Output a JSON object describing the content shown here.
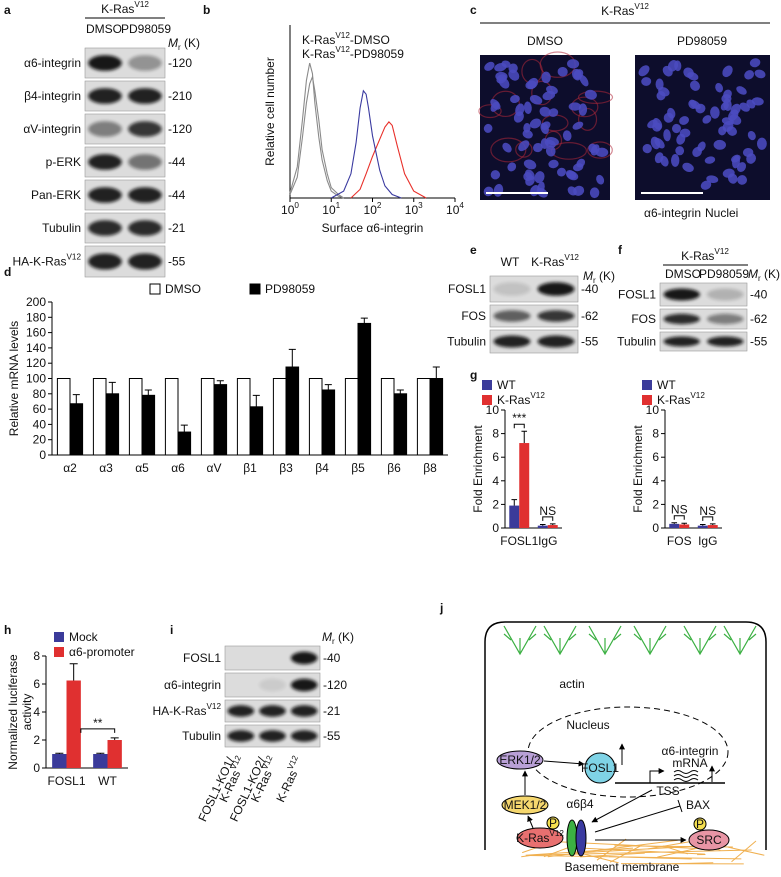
{
  "figure": {
    "a": {
      "letter": "a",
      "group": [
        "K-Ras",
        "V12"
      ],
      "lanes": [
        "DMSO",
        "PD98059"
      ],
      "mr_header": [
        "M",
        "r",
        " (K)"
      ],
      "rows": [
        {
          "label": "α6-integrin",
          "mr": "-120"
        },
        {
          "label": "β4-integrin",
          "mr": "-210"
        },
        {
          "label": "αV-integrin",
          "mr": "-120"
        },
        {
          "label": "p-ERK",
          "mr": "-44"
        },
        {
          "label": "Pan-ERK",
          "mr": "-44"
        },
        {
          "label": "Tubulin",
          "mr": "-21"
        },
        {
          "label": [
            "HA-K-Ras",
            "V12"
          ],
          "mr": "-55"
        }
      ]
    },
    "b": {
      "letter": "b"
    },
    "c": {
      "letter": "c",
      "group": [
        "K-Ras",
        "V12"
      ],
      "lanes": [
        "DMSO",
        "PD98059"
      ],
      "legend": [
        "α6-integrin",
        "Nuclei"
      ]
    },
    "d": {
      "letter": "d"
    },
    "e": {
      "letter": "e",
      "lanes": [
        "WT",
        [
          "K-Ras",
          "V12"
        ]
      ],
      "mr_header": [
        "M",
        "r",
        " (K)"
      ],
      "rows": [
        {
          "label": "FOSL1",
          "mr": "-40"
        },
        {
          "label": "FOS",
          "mr": "-62"
        },
        {
          "label": "Tubulin",
          "mr": "-55"
        }
      ]
    },
    "f": {
      "letter": "f",
      "group": [
        "K-Ras",
        "V12"
      ],
      "lanes": [
        "DMSO",
        "PD98059"
      ],
      "mr_header": [
        "M",
        "r",
        " (K)"
      ],
      "rows": [
        {
          "label": "FOSL1",
          "mr": "-40"
        },
        {
          "label": "FOS",
          "mr": "-62"
        },
        {
          "label": "Tubulin",
          "mr": "-55"
        }
      ]
    },
    "g": {
      "letter": "g"
    },
    "h": {
      "letter": "h"
    },
    "i": {
      "letter": "i",
      "mr_header": [
        "M",
        "r",
        " (K)"
      ],
      "rows": [
        {
          "label": "FOSL1",
          "mr": "-40"
        },
        {
          "label": "α6-integrin",
          "mr": "-120"
        },
        {
          "label": [
            "HA-K-Ras",
            "V12"
          ],
          "mr": "-21"
        },
        {
          "label": "Tubulin",
          "mr": "-55"
        }
      ],
      "lanes": [
        [
          "FOSL1-KO1/",
          [
            "K-Ras",
            "V12"
          ]
        ],
        [
          "FOSL1-KO2/",
          [
            "K-Ras",
            "V12"
          ]
        ],
        [
          [
            "K-Ras",
            "V12"
          ]
        ]
      ]
    },
    "j": {
      "letter": "j",
      "actin": "actin",
      "nucleus": "Nucleus",
      "erk": "ERK1/2",
      "fosl1": "FOSL1",
      "tss": "TSS",
      "mrna": [
        "α6-integrin",
        "mRNA"
      ],
      "mek": "MEK1/2",
      "bax": "BAX",
      "p_kras": "P",
      "p_src": "P",
      "kras": [
        "K-Ras",
        "V12"
      ],
      "integrin": "α6β4",
      "src": "SRC",
      "membrane": "Basement membrane"
    }
  },
  "chart_data": [
    {
      "type": "line",
      "log_x": true,
      "xlabel": "Surface α6-integrin",
      "ylabel": "Relative cell number",
      "xlim": [
        1,
        10000
      ],
      "ylim": [
        0,
        100
      ],
      "xticks": [
        {
          "value": 1,
          "label": [
            "10",
            "0"
          ]
        },
        {
          "value": 10,
          "label": [
            "10",
            "1"
          ]
        },
        {
          "value": 100,
          "label": [
            "10",
            "2"
          ]
        },
        {
          "value": 1000,
          "label": [
            "10",
            "3"
          ]
        },
        {
          "value": 10000,
          "label": [
            "10",
            "4"
          ]
        }
      ],
      "series": [
        {
          "color": "#8a8a8a",
          "x": [
            1,
            1.5,
            2,
            2.5,
            3,
            3.5,
            4,
            5,
            6,
            8,
            10,
            15,
            20
          ],
          "values": [
            3,
            18,
            45,
            68,
            78,
            72,
            55,
            35,
            22,
            10,
            4,
            1,
            0
          ]
        },
        {
          "color": "#8a8a8a",
          "x": [
            1,
            1.5,
            2,
            2.5,
            3,
            3.5,
            4,
            5,
            6,
            8,
            10,
            15,
            20
          ],
          "values": [
            2,
            12,
            35,
            55,
            66,
            70,
            62,
            45,
            28,
            14,
            6,
            2,
            0
          ]
        },
        {
          "name": [
            "K-Ras",
            "V12",
            "-DMSO"
          ],
          "color": "#e8302a",
          "x": [
            30,
            50,
            70,
            100,
            150,
            200,
            250,
            300,
            400,
            600,
            1000,
            2000
          ],
          "values": [
            0,
            5,
            14,
            24,
            34,
            41,
            44,
            42,
            30,
            14,
            4,
            0
          ]
        },
        {
          "name": [
            "K-Ras",
            "V12",
            "-PD98059"
          ],
          "color": "#3a3aa0",
          "x": [
            10,
            20,
            30,
            40,
            50,
            60,
            70,
            80,
            100,
            150,
            200,
            300,
            500
          ],
          "values": [
            0,
            4,
            14,
            32,
            52,
            62,
            60,
            52,
            36,
            16,
            7,
            2,
            0
          ]
        }
      ]
    },
    {
      "type": "bar",
      "ylabel": "Relative mRNA levels",
      "categories": [
        "α2",
        "α3",
        "α5",
        "α6",
        "αV",
        "β1",
        "β3",
        "β4",
        "β5",
        "β6",
        "β8"
      ],
      "ylim": [
        0,
        200
      ],
      "yticks": [
        0,
        20,
        40,
        60,
        80,
        100,
        120,
        140,
        160,
        180,
        200
      ],
      "series": [
        {
          "name": "DMSO",
          "color": "#ffffff",
          "edgecolor": "#000000",
          "values": [
            100,
            100,
            100,
            100,
            100,
            100,
            100,
            100,
            100,
            100,
            100
          ]
        },
        {
          "name": "PD98059",
          "color": "#000000",
          "edgecolor": "#000000",
          "values": [
            67,
            80,
            78,
            30,
            92,
            63,
            115,
            85,
            172,
            80,
            100
          ],
          "errors": [
            12,
            15,
            7,
            9,
            5,
            15,
            23,
            7,
            7,
            5,
            15
          ]
        }
      ]
    },
    {
      "type": "bar",
      "ylabel": "Fold Enrichment",
      "categories": [
        "FOSL1",
        "IgG"
      ],
      "ylim": [
        0,
        10
      ],
      "yticks": [
        0,
        2,
        4,
        6,
        8,
        10
      ],
      "series": [
        {
          "name": "WT",
          "color": "#3b3b9a",
          "values": [
            1.9,
            0.2
          ],
          "errors": [
            0.5,
            0.1
          ]
        },
        {
          "name": [
            "K-Ras",
            "V12"
          ],
          "color": "#e03030",
          "values": [
            7.2,
            0.25
          ],
          "errors": [
            1.0,
            0.1
          ]
        }
      ],
      "annotations": [
        "***",
        "NS"
      ]
    },
    {
      "type": "bar",
      "ylabel": "Fold Enrichment",
      "categories": [
        "FOS",
        "IgG"
      ],
      "ylim": [
        0,
        10
      ],
      "yticks": [
        0,
        2,
        4,
        6,
        8,
        10
      ],
      "series": [
        {
          "name": "WT",
          "color": "#3b3b9a",
          "values": [
            0.35,
            0.2
          ],
          "errors": [
            0.1,
            0.1
          ]
        },
        {
          "name": [
            "K-Ras",
            "V12"
          ],
          "color": "#e03030",
          "values": [
            0.3,
            0.25
          ],
          "errors": [
            0.1,
            0.1
          ]
        }
      ],
      "annotations": [
        "NS",
        "NS"
      ]
    },
    {
      "type": "bar",
      "ylabel_lines": [
        "Normalized luciferase",
        "activity"
      ],
      "categories": [
        "FOSL1",
        "WT"
      ],
      "ylim": [
        0,
        8
      ],
      "yticks": [
        0,
        2,
        4,
        6,
        8
      ],
      "series": [
        {
          "name": "Mock",
          "color": "#3b3b9a",
          "values": [
            1.0,
            1.0
          ],
          "errors": [
            0.05,
            0.05
          ]
        },
        {
          "name": "α6-promoter",
          "color": "#e03030",
          "values": [
            6.25,
            2.0
          ],
          "errors": [
            1.2,
            0.15
          ]
        }
      ],
      "annotations": [
        "**"
      ]
    }
  ]
}
